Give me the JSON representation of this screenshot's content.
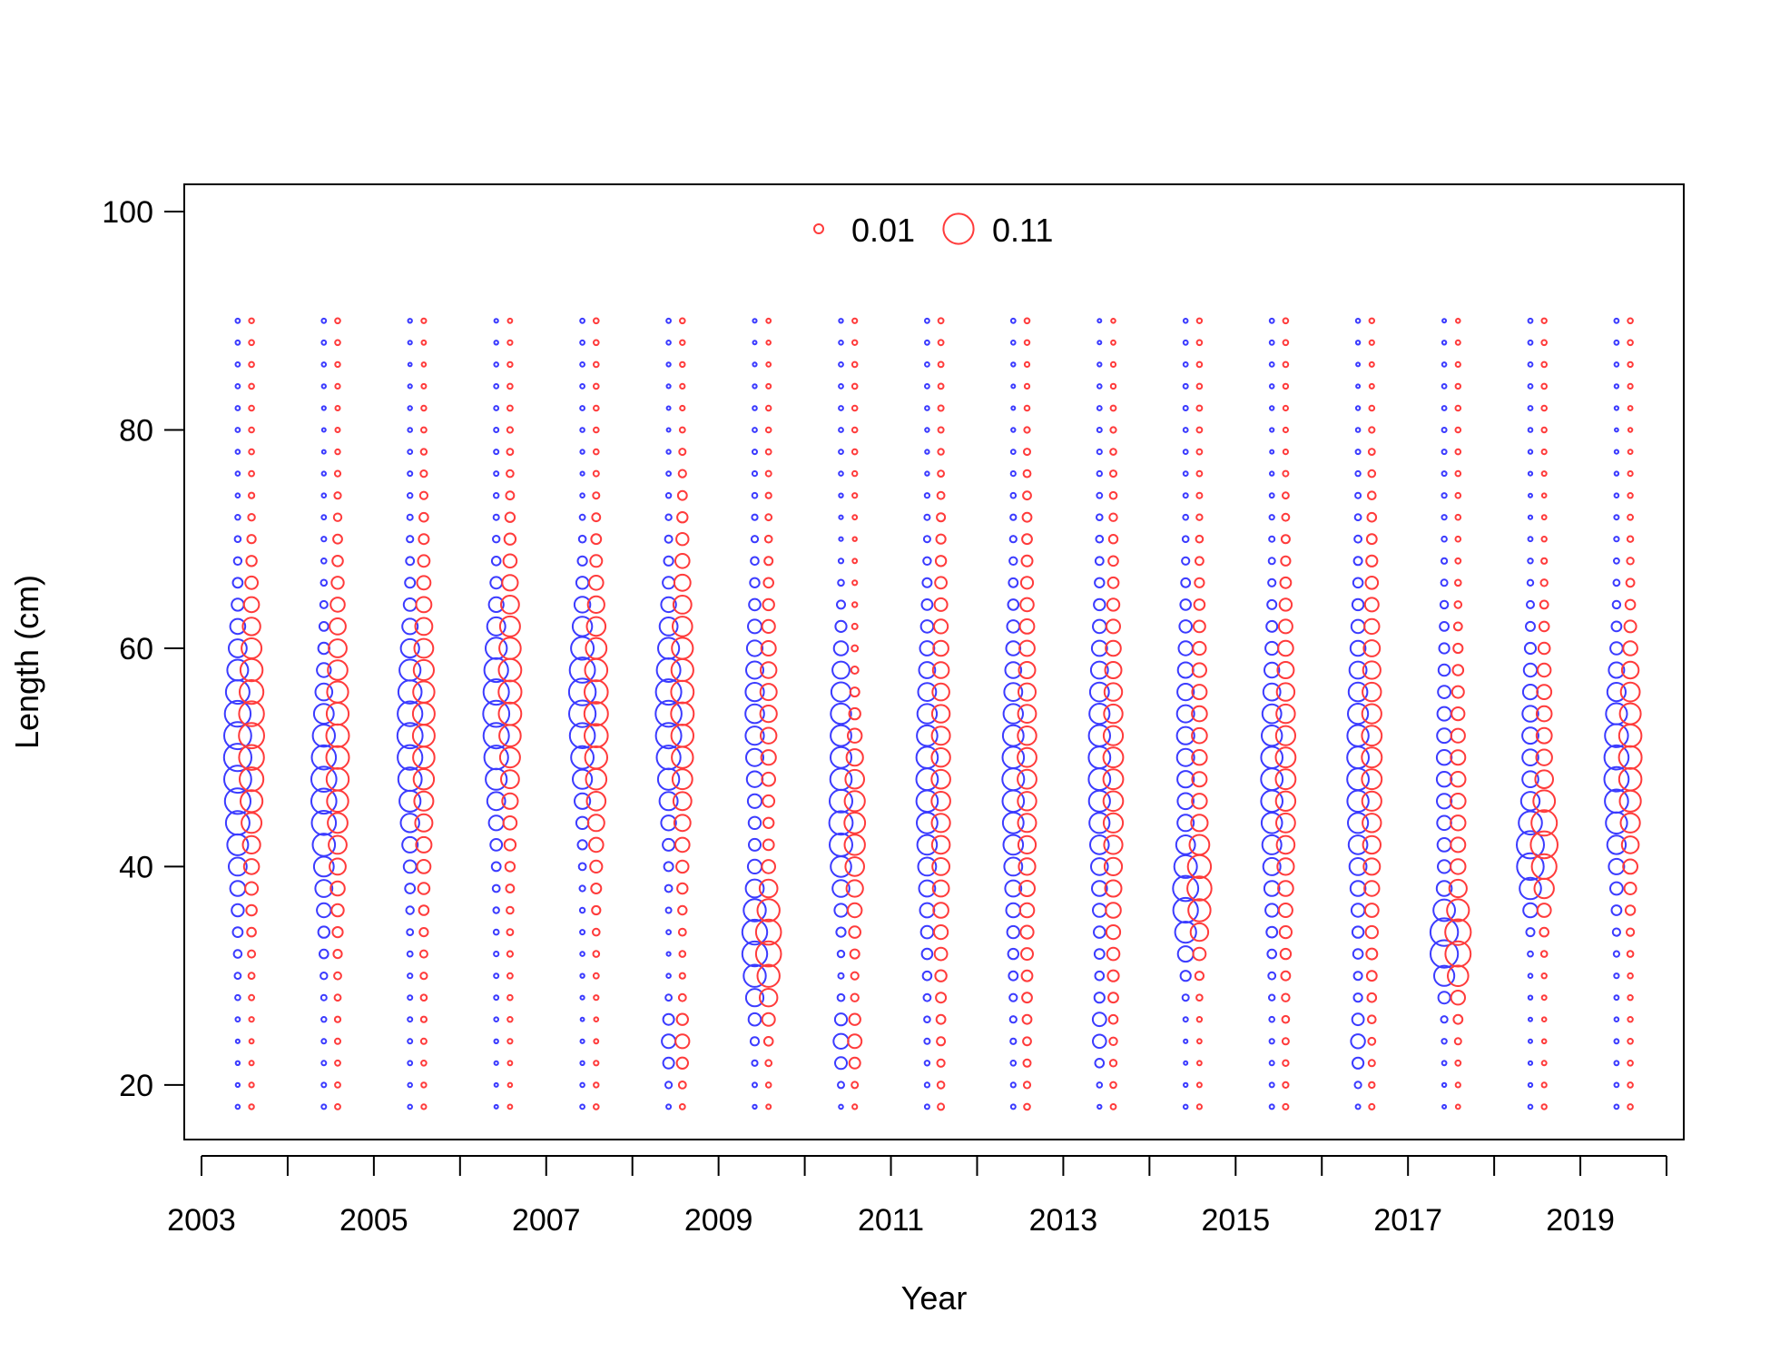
{
  "chart_data": {
    "type": "scatter",
    "subtype": "bubble",
    "title": "",
    "xlabel": "Year",
    "ylabel": "Length (cm)",
    "xlim": [
      2002.8,
      2020.2
    ],
    "ylim": [
      15,
      102.5
    ],
    "x_ticks": [
      2003,
      2004,
      2005,
      2006,
      2007,
      2008,
      2009,
      2010,
      2011,
      2012,
      2013,
      2014,
      2015,
      2016,
      2017,
      2018,
      2019,
      2020
    ],
    "x_tick_labels": [
      "2003",
      "2005",
      "2007",
      "2009",
      "2011",
      "2013",
      "2015",
      "2017",
      "2019"
    ],
    "x_tick_label_years": [
      2003,
      2005,
      2007,
      2009,
      2011,
      2013,
      2015,
      2017,
      2019
    ],
    "y_ticks": [
      20,
      40,
      60,
      80,
      100
    ],
    "y_tick_labels": [
      "20",
      "40",
      "60",
      "80",
      "100"
    ],
    "grid": false,
    "legend": {
      "placement": "top-center",
      "entries": [
        {
          "label": "0.01",
          "value": 0.01
        },
        {
          "label": "0.11",
          "value": 0.11
        }
      ]
    },
    "series_colors": {
      "blue": "#3b3bff",
      "red": "#ff3b3b"
    },
    "series_offsets_years": {
      "blue": -0.08,
      "red": 0.08
    },
    "years": [
      2003,
      2004,
      2005,
      2006,
      2007,
      2008,
      2009,
      2010,
      2011,
      2012,
      2013,
      2014,
      2015,
      2016,
      2017,
      2018,
      2019
    ],
    "lengths": [
      18,
      20,
      22,
      24,
      26,
      28,
      30,
      32,
      34,
      36,
      38,
      40,
      42,
      44,
      46,
      48,
      50,
      52,
      54,
      56,
      58,
      60,
      62,
      64,
      66,
      68,
      70,
      72,
      74,
      76,
      78,
      80,
      82,
      84,
      86,
      88,
      90
    ],
    "peaks": {
      "blue": [
        [
          [
            50,
            7.5,
            0.09
          ]
        ],
        [
          [
            47,
            7.0,
            0.075
          ]
        ],
        [
          [
            52,
            7.0,
            0.075
          ]
        ],
        [
          [
            54,
            6.5,
            0.08
          ]
        ],
        [
          [
            55,
            6.0,
            0.085
          ]
        ],
        [
          [
            54,
            6.5,
            0.08
          ],
          [
            24,
            2.0,
            0.02
          ]
        ],
        [
          [
            33,
            4.0,
            0.075
          ],
          [
            54,
            7.0,
            0.04
          ]
        ],
        [
          [
            43,
            4.5,
            0.06
          ],
          [
            54,
            5.0,
            0.045
          ],
          [
            24,
            2.0,
            0.025
          ]
        ],
        [
          [
            48,
            9.0,
            0.055
          ]
        ],
        [
          [
            48,
            9.0,
            0.055
          ]
        ],
        [
          [
            49,
            9.0,
            0.055
          ],
          [
            25,
            2.0,
            0.02
          ]
        ],
        [
          [
            37,
            3.5,
            0.07
          ],
          [
            52,
            8.0,
            0.035
          ]
        ],
        [
          [
            48,
            8.0,
            0.055
          ]
        ],
        [
          [
            49,
            9.0,
            0.055
          ],
          [
            24,
            2.0,
            0.02
          ]
        ],
        [
          [
            33,
            2.5,
            0.09
          ],
          [
            48,
            9.0,
            0.025
          ]
        ],
        [
          [
            41,
            3.0,
            0.085
          ],
          [
            52,
            6.0,
            0.03
          ]
        ],
        [
          [
            49,
            6.5,
            0.07
          ]
        ]
      ],
      "red": [
        [
          [
            52,
            8.0,
            0.075
          ]
        ],
        [
          [
            51,
            9.0,
            0.06
          ]
        ],
        [
          [
            53,
            9.0,
            0.055
          ]
        ],
        [
          [
            56,
            8.0,
            0.06
          ]
        ],
        [
          [
            54,
            8.0,
            0.065
          ]
        ],
        [
          [
            55,
            9.0,
            0.06
          ],
          [
            24,
            2.0,
            0.02
          ]
        ],
        [
          [
            33,
            4.0,
            0.075
          ],
          [
            55,
            7.0,
            0.03
          ]
        ],
        [
          [
            44,
            6.0,
            0.05
          ],
          [
            24,
            2.0,
            0.02
          ]
        ],
        [
          [
            48,
            12.0,
            0.04
          ]
        ],
        [
          [
            49,
            12.0,
            0.04
          ]
        ],
        [
          [
            48,
            11.0,
            0.045
          ]
        ],
        [
          [
            38,
            3.5,
            0.06
          ],
          [
            52,
            9.0,
            0.025
          ]
        ],
        [
          [
            49,
            10.0,
            0.045
          ]
        ],
        [
          [
            50,
            11.0,
            0.045
          ]
        ],
        [
          [
            33,
            3.0,
            0.07
          ],
          [
            46,
            9.0,
            0.025
          ]
        ],
        [
          [
            42,
            3.5,
            0.08
          ],
          [
            53,
            6.0,
            0.025
          ]
        ],
        [
          [
            50,
            7.0,
            0.06
          ]
        ]
      ]
    },
    "background_proportion": {
      "blue": 0.0015,
      "red": 0.002
    }
  }
}
